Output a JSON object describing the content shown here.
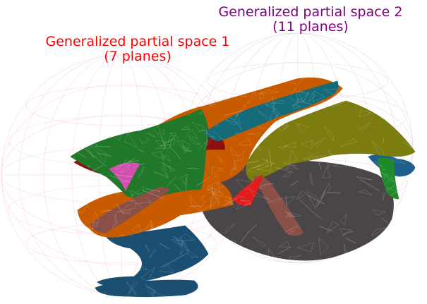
{
  "spaces": [
    {
      "title": "Generalized partial space 1",
      "subtitle": "(7 planes)",
      "color": "#ff0000",
      "mesh_color": "#ffb6c1"
    },
    {
      "title": "Generalized partial space 2",
      "subtitle": "(11 planes)",
      "color": "#800080",
      "mesh_color": "#d8b4d8"
    }
  ],
  "surface_colors": {
    "navy": "#1b4f72",
    "orange": "#c85a00",
    "green": "#22782a",
    "dark_red": "#8b1010",
    "teal": "#156b7a",
    "olive": "#7c7c10",
    "gray": "#4a4648",
    "pink": "#d24fb0",
    "red": "#e01c1c",
    "rose_brown": "#8a5048",
    "bright_green": "#1f8a2a",
    "blue": "#1d5f8a"
  }
}
